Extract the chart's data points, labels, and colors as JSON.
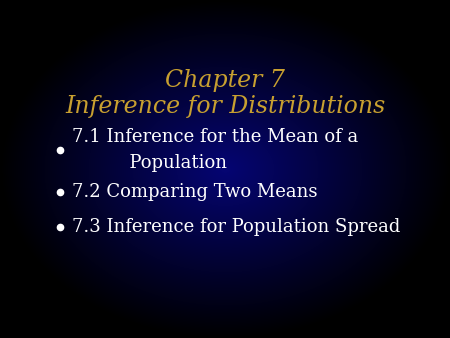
{
  "title_line1": "Chapter 7",
  "title_line2": "Inference for Distributions",
  "title_color": "#C8A030",
  "bullet_color": "#FFFFFF",
  "bullet_texts": [
    "7.1 Inference for the Mean of a\n          Population",
    "7.2 Comparing Two Means",
    "7.3 Inference for Population Spread"
  ],
  "bg_dark_blue": "#0A0A7A",
  "bg_black": "#000000",
  "title_fontsize": 17,
  "bullet_fontsize": 13
}
